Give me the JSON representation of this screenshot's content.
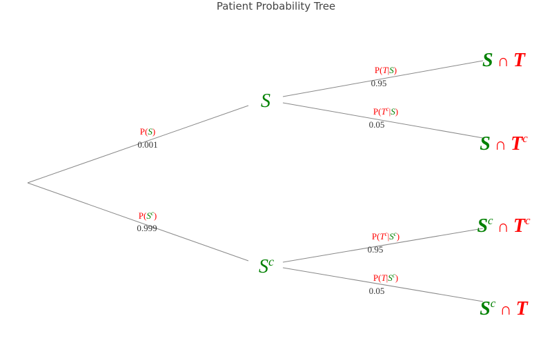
{
  "title": "Patient Probability Tree",
  "colors": {
    "line": "#888888",
    "s": "#008000",
    "t": "#ff0000",
    "text": "#333333"
  },
  "nodes": {
    "s": {
      "base": "S",
      "sup": ""
    },
    "sc": {
      "base": "S",
      "sup": "c"
    }
  },
  "branches": {
    "root_s": {
      "label_parts": [
        [
          "P(",
          "text"
        ],
        [
          "S",
          "s"
        ],
        [
          ")",
          "text"
        ]
      ],
      "prob": "0.001"
    },
    "root_sc": {
      "label_parts": [
        [
          "P(",
          "text"
        ],
        [
          "S",
          "s"
        ],
        [
          "c",
          "s-sup"
        ],
        [
          ")",
          "text"
        ]
      ],
      "prob": "0.999"
    },
    "s_t": {
      "label_parts": [
        [
          "P(",
          "text"
        ],
        [
          "T",
          "t"
        ],
        [
          "|",
          "text"
        ],
        [
          "S",
          "s"
        ],
        [
          ")",
          "text"
        ]
      ],
      "prob": "0.95"
    },
    "s_tc": {
      "label_parts": [
        [
          "P(",
          "text"
        ],
        [
          "T",
          "t"
        ],
        [
          "c",
          "t-sup"
        ],
        [
          "|",
          "text"
        ],
        [
          "S",
          "s"
        ],
        [
          ")",
          "text"
        ]
      ],
      "prob": "0.05"
    },
    "sc_tc": {
      "label_parts": [
        [
          "P(",
          "text"
        ],
        [
          "T",
          "t"
        ],
        [
          "c",
          "t-sup"
        ],
        [
          "|",
          "text"
        ],
        [
          "S",
          "s"
        ],
        [
          "c",
          "s-sup"
        ],
        [
          ")",
          "text"
        ]
      ],
      "prob": "0.95"
    },
    "sc_t": {
      "label_parts": [
        [
          "P(",
          "text"
        ],
        [
          "T",
          "t"
        ],
        [
          "|",
          "text"
        ],
        [
          "S",
          "s"
        ],
        [
          "c",
          "s-sup"
        ],
        [
          ")",
          "text"
        ]
      ],
      "prob": "0.05"
    }
  },
  "outcomes": {
    "s_and_t": {
      "parts": [
        [
          "S",
          "s"
        ],
        [
          " ∩ ",
          "text"
        ],
        [
          "T",
          "t"
        ]
      ]
    },
    "s_and_tc": {
      "parts": [
        [
          "S",
          "s"
        ],
        [
          " ∩ ",
          "text"
        ],
        [
          "T",
          "t"
        ],
        [
          "c",
          "t-sup"
        ]
      ]
    },
    "sc_and_tc": {
      "parts": [
        [
          "S",
          "s"
        ],
        [
          "c",
          "s-sup"
        ],
        [
          " ∩ ",
          "text"
        ],
        [
          "T",
          "t"
        ],
        [
          "c",
          "t-sup"
        ]
      ]
    },
    "sc_and_t": {
      "parts": [
        [
          "S",
          "s"
        ],
        [
          "c",
          "s-sup"
        ],
        [
          " ∩ ",
          "text"
        ],
        [
          "T",
          "t"
        ]
      ]
    }
  }
}
